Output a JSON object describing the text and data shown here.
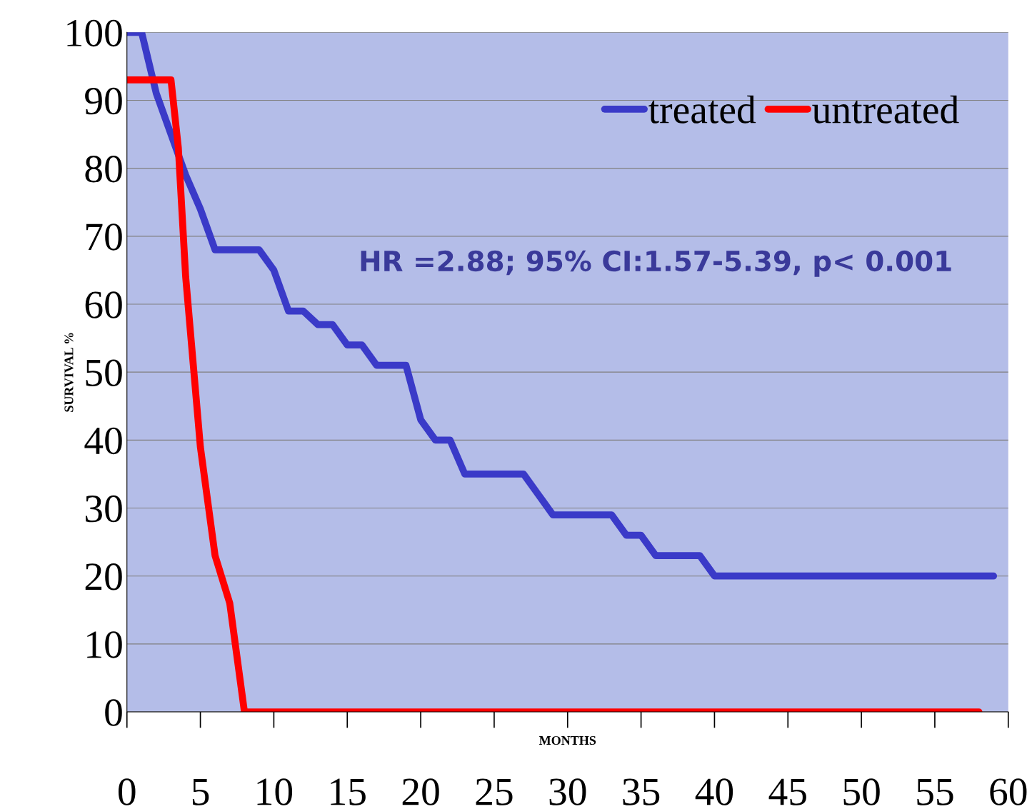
{
  "chart_data": {
    "type": "line",
    "xlabel": "MONTHS",
    "ylabel": "SURVIVAL %",
    "xlim": [
      0,
      60
    ],
    "ylim": [
      0,
      100
    ],
    "xticks": [
      0,
      5,
      10,
      15,
      20,
      25,
      30,
      35,
      40,
      45,
      50,
      55,
      60
    ],
    "yticks": [
      0,
      10,
      20,
      30,
      40,
      50,
      60,
      70,
      80,
      90,
      100
    ],
    "grid": "y",
    "legend": "top right",
    "marker": "none",
    "line_style": "solid",
    "annotations": [
      "HR =2.88; 95% CI:1.57-5.39, p< 0.001"
    ],
    "series": [
      {
        "name": "treated",
        "color": "#3a3ac8",
        "x": [
          0,
          1,
          2,
          3,
          4,
          5,
          6,
          9,
          10,
          11,
          12,
          13,
          14,
          15,
          16,
          17,
          19,
          20,
          21,
          22,
          23,
          27,
          28,
          29,
          33,
          34,
          35,
          36,
          39,
          40,
          59
        ],
        "values": [
          100,
          100,
          91,
          85,
          79,
          74,
          68,
          68,
          65,
          59,
          59,
          57,
          57,
          54,
          54,
          51,
          51,
          43,
          40,
          40,
          35,
          35,
          32,
          29,
          29,
          26,
          26,
          23,
          23,
          20,
          20
        ]
      },
      {
        "name": "untreated",
        "color": "#ff0000",
        "x": [
          0,
          3,
          3.5,
          4,
          5,
          6,
          7,
          8,
          58
        ],
        "values": [
          93,
          93,
          83,
          64,
          39,
          23,
          16,
          0,
          0
        ]
      }
    ]
  }
}
